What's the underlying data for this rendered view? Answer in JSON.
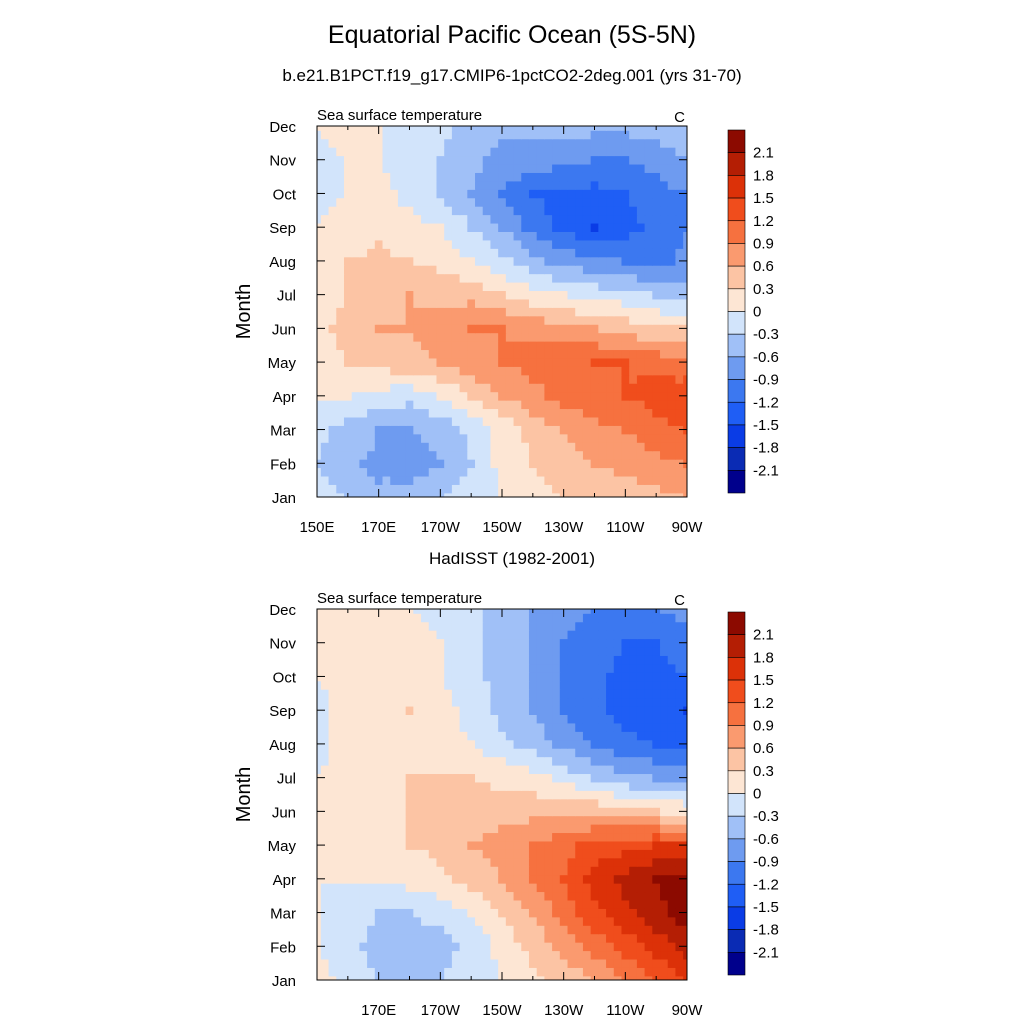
{
  "title": "Equatorial Pacific Ocean (5S-5N)",
  "chart_data": [
    {
      "type": "heatmap",
      "subtitle": "b.e21.B1PCT.f19_g17.CMIP6-1pctCO2-2deg.001 (yrs 31-70)",
      "left_label": "Sea surface temperature",
      "right_label": "C",
      "ylabel": "Month",
      "xlabel": "",
      "x_ticks": [
        "150E",
        "170E",
        "170W",
        "150W",
        "130W",
        "110W",
        "90W"
      ],
      "y_ticks": [
        "Jan",
        "Feb",
        "Mar",
        "Apr",
        "May",
        "Jun",
        "Jul",
        "Aug",
        "Sep",
        "Oct",
        "Nov",
        "Dec"
      ],
      "xlim": [
        150,
        270
      ],
      "colorbar_labels": [
        "2.1",
        "1.8",
        "1.5",
        "1.2",
        "0.9",
        "0.6",
        "0.3",
        "0",
        "-0.3",
        "-0.6",
        "-0.9",
        "-1.2",
        "-1.5",
        "-1.8",
        "-2.1"
      ],
      "levels": [
        -2.1,
        -1.8,
        -1.5,
        -1.2,
        -0.9,
        -0.6,
        -0.3,
        0,
        0.3,
        0.6,
        0.9,
        1.2,
        1.5,
        1.8,
        2.1
      ],
      "lon": [
        150,
        160,
        170,
        180,
        190,
        200,
        210,
        220,
        230,
        240,
        250,
        260,
        270
      ],
      "values": [
        [
          -0.2,
          -0.3,
          -0.5,
          -0.4,
          -0.3,
          -0.1,
          0.0,
          0.2,
          0.3,
          0.4,
          0.4,
          0.5,
          0.6
        ],
        [
          -0.3,
          -0.5,
          -0.7,
          -0.8,
          -0.6,
          -0.3,
          0.1,
          0.3,
          0.5,
          0.6,
          0.7,
          0.8,
          0.9
        ],
        [
          -0.2,
          -0.4,
          -0.6,
          -0.6,
          -0.5,
          -0.2,
          0.1,
          0.4,
          0.6,
          0.8,
          0.9,
          1.1,
          1.2
        ],
        [
          0.0,
          0.0,
          -0.1,
          -0.2,
          0.0,
          0.3,
          0.6,
          0.8,
          1.0,
          1.1,
          1.2,
          1.3,
          1.4
        ],
        [
          0.2,
          0.3,
          0.4,
          0.5,
          0.6,
          0.8,
          0.9,
          1.0,
          1.1,
          1.2,
          1.2,
          1.1,
          1.0
        ],
        [
          0.2,
          0.4,
          0.6,
          0.6,
          0.8,
          0.9,
          0.9,
          0.8,
          0.7,
          0.6,
          0.5,
          0.3,
          0.3
        ],
        [
          0.2,
          0.3,
          0.5,
          0.6,
          0.5,
          0.5,
          0.3,
          0.1,
          0.0,
          -0.1,
          -0.2,
          -0.3,
          -0.4
        ],
        [
          0.1,
          0.3,
          0.4,
          0.3,
          0.2,
          0.0,
          -0.2,
          -0.5,
          -0.7,
          -0.8,
          -0.9,
          -1.0,
          -0.8
        ],
        [
          0.0,
          0.1,
          0.2,
          0.1,
          0.0,
          -0.3,
          -0.6,
          -1.0,
          -1.3,
          -1.5,
          -1.3,
          -1.1,
          -0.9
        ],
        [
          -0.1,
          0.0,
          0.1,
          -0.1,
          -0.3,
          -0.6,
          -0.9,
          -1.2,
          -1.3,
          -1.3,
          -1.2,
          -1.0,
          -0.9
        ],
        [
          -0.1,
          0.0,
          0.0,
          -0.1,
          -0.3,
          -0.5,
          -0.7,
          -0.7,
          -0.8,
          -0.9,
          -0.9,
          -0.8,
          -0.6
        ],
        [
          0.0,
          0.1,
          0.0,
          -0.1,
          -0.2,
          -0.4,
          -0.5,
          -0.5,
          -0.5,
          -0.5,
          -0.5,
          -0.4,
          -0.3
        ]
      ]
    },
    {
      "type": "heatmap",
      "subtitle": "HadISST (1982-2001)",
      "left_label": "Sea surface temperature",
      "right_label": "C",
      "ylabel": "Month",
      "xlabel": "",
      "x_ticks": [
        "170E",
        "170W",
        "150W",
        "130W",
        "110W",
        "90W"
      ],
      "y_ticks": [
        "Jan",
        "Feb",
        "Mar",
        "Apr",
        "May",
        "Jun",
        "Jul",
        "Aug",
        "Sep",
        "Oct",
        "Nov",
        "Dec"
      ],
      "xlim": [
        150,
        270
      ],
      "colorbar_labels": [
        "2.1",
        "1.8",
        "1.5",
        "1.2",
        "0.9",
        "0.6",
        "0.3",
        "0",
        "-0.3",
        "-0.6",
        "-0.9",
        "-1.2",
        "-1.5",
        "-1.8",
        "-2.1"
      ],
      "levels": [
        -2.1,
        -1.8,
        -1.5,
        -1.2,
        -0.9,
        -0.6,
        -0.3,
        0,
        0.3,
        0.6,
        0.9,
        1.2,
        1.5,
        1.8,
        2.1
      ],
      "lon": [
        150,
        160,
        170,
        180,
        190,
        200,
        210,
        220,
        230,
        240,
        250,
        260,
        270
      ],
      "values": [
        [
          0.1,
          -0.1,
          -0.3,
          -0.4,
          -0.3,
          -0.2,
          0.0,
          0.2,
          0.4,
          0.6,
          0.9,
          1.2,
          1.5
        ],
        [
          0.0,
          -0.2,
          -0.4,
          -0.4,
          -0.4,
          -0.2,
          0.1,
          0.4,
          0.7,
          1.0,
          1.3,
          1.6,
          1.9
        ],
        [
          0.0,
          -0.1,
          -0.3,
          -0.3,
          -0.2,
          0.0,
          0.3,
          0.6,
          1.0,
          1.4,
          1.7,
          2.0,
          2.3
        ],
        [
          0.0,
          0.0,
          0.0,
          0.1,
          0.2,
          0.4,
          0.6,
          0.9,
          1.2,
          1.6,
          1.9,
          2.1,
          2.3
        ],
        [
          0.1,
          0.1,
          0.2,
          0.3,
          0.4,
          0.6,
          0.7,
          0.9,
          1.1,
          1.3,
          1.4,
          1.5,
          1.5
        ],
        [
          0.1,
          0.1,
          0.2,
          0.3,
          0.3,
          0.4,
          0.5,
          0.5,
          0.5,
          0.5,
          0.4,
          0.3,
          0.2
        ],
        [
          0.0,
          0.1,
          0.2,
          0.3,
          0.3,
          0.3,
          0.2,
          0.1,
          -0.1,
          -0.3,
          -0.5,
          -0.6,
          -0.7
        ],
        [
          -0.1,
          0.1,
          0.2,
          0.2,
          0.1,
          0.0,
          -0.2,
          -0.4,
          -0.7,
          -0.9,
          -1.1,
          -1.2,
          -1.3
        ],
        [
          -0.1,
          0.1,
          0.2,
          0.3,
          0.1,
          -0.1,
          -0.4,
          -0.6,
          -0.9,
          -1.1,
          -1.3,
          -1.4,
          -1.5
        ],
        [
          0.0,
          0.1,
          0.1,
          0.1,
          0.0,
          -0.2,
          -0.4,
          -0.6,
          -0.9,
          -1.1,
          -1.3,
          -1.3,
          -1.2
        ],
        [
          0.0,
          0.1,
          0.1,
          0.1,
          0.0,
          -0.2,
          -0.4,
          -0.6,
          -0.9,
          -1.1,
          -1.2,
          -1.2,
          -1.0
        ],
        [
          0.1,
          0.1,
          0.1,
          0.0,
          -0.1,
          -0.2,
          -0.4,
          -0.6,
          -0.8,
          -0.9,
          -1.0,
          -0.9,
          -0.8
        ]
      ]
    }
  ],
  "colors": {
    "negative": [
      "#00008c",
      "#0a2bb4",
      "#0a3ce6",
      "#1f5ef5",
      "#3c78f0",
      "#6e9bf0",
      "#a0c0f7",
      "#d2e4fb"
    ],
    "positive": [
      "#fde6d4",
      "#fcc4a4",
      "#fa9a6f",
      "#f6713f",
      "#f04d1c",
      "#dc3108",
      "#b41e04",
      "#8c0a00"
    ]
  }
}
